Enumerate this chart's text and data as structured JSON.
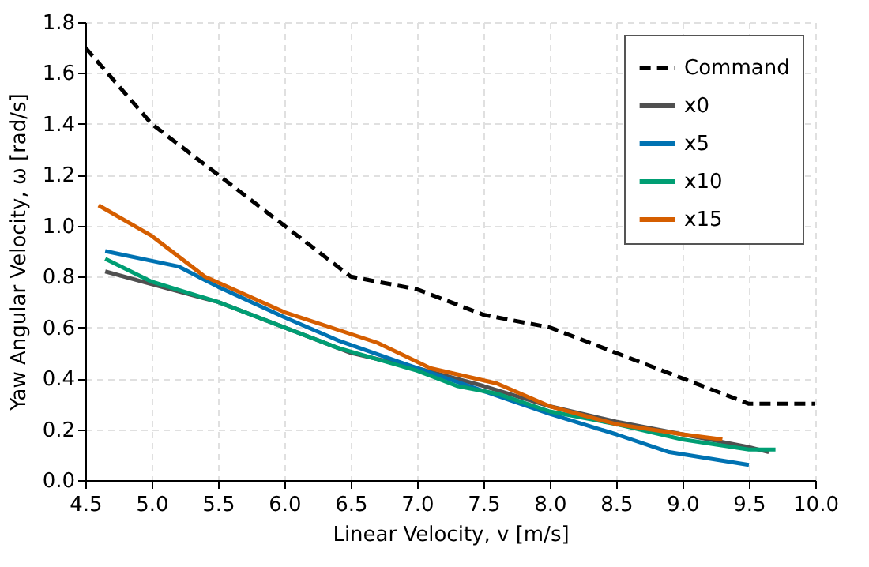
{
  "chart_data": {
    "type": "line",
    "xlabel": "Linear Velocity, v [m/s]",
    "ylabel": "Yaw Angular Velocity, ω [rad/s]",
    "xlim": [
      4.5,
      10.0
    ],
    "xticks": [
      {
        "value": 4.5,
        "label": "4.5"
      },
      {
        "value": 5,
        "label": "5.0"
      },
      {
        "value": 5.5,
        "label": "5.5"
      },
      {
        "value": 6,
        "label": "6.0"
      },
      {
        "value": 6.5,
        "label": "6.5"
      },
      {
        "value": 7,
        "label": "7.0"
      },
      {
        "value": 7.5,
        "label": "7.5"
      },
      {
        "value": 8,
        "label": "8.0"
      },
      {
        "value": 8.5,
        "label": "8.5"
      },
      {
        "value": 9,
        "label": "9.0"
      },
      {
        "value": 9.5,
        "label": "9.5"
      },
      {
        "value": 10,
        "label": "10.0"
      }
    ],
    "ylim": [
      0,
      1.8
    ],
    "yticks": [
      {
        "value": 0,
        "label": "0.0"
      },
      {
        "value": 0.2,
        "label": "0.2"
      },
      {
        "value": 0.4,
        "label": "0.4"
      },
      {
        "value": 0.6,
        "label": "0.6"
      },
      {
        "value": 0.8,
        "label": "0.8"
      },
      {
        "value": 1,
        "label": "1.0"
      },
      {
        "value": 1.2,
        "label": "1.2"
      },
      {
        "value": 1.4,
        "label": "1.4"
      },
      {
        "value": 1.6,
        "label": "1.6"
      },
      {
        "value": 1.8,
        "label": "1.8"
      }
    ],
    "grid": true,
    "legend": "top right",
    "marker": "none",
    "series": [
      {
        "name": "Command",
        "color": "#000000",
        "line_style": "dashed",
        "x": [
          4.5,
          5.0,
          5.5,
          6.0,
          6.5,
          7.0,
          7.5,
          8.0,
          8.5,
          9.0,
          9.5,
          10.0
        ],
        "values": [
          1.7,
          1.4,
          1.2,
          1.0,
          0.8,
          0.75,
          0.65,
          0.6,
          0.5,
          0.4,
          0.3,
          0.3
        ]
      },
      {
        "name": "x0",
        "color": "#505050",
        "line_style": "solid",
        "x": [
          4.65,
          5.0,
          5.5,
          6.0,
          6.5,
          7.0,
          7.5,
          8.0,
          8.5,
          9.0,
          9.5,
          9.65
        ],
        "values": [
          0.82,
          0.77,
          0.7,
          0.6,
          0.5,
          0.44,
          0.37,
          0.29,
          0.23,
          0.18,
          0.13,
          0.11
        ]
      },
      {
        "name": "x5",
        "color": "#0072b2",
        "line_style": "solid",
        "x": [
          4.65,
          5.2,
          5.5,
          6.0,
          6.4,
          7.0,
          7.5,
          8.0,
          8.5,
          8.9,
          9.5
        ],
        "values": [
          0.9,
          0.84,
          0.76,
          0.64,
          0.55,
          0.44,
          0.35,
          0.26,
          0.18,
          0.11,
          0.06
        ]
      },
      {
        "name": "x10",
        "color": "#009e73",
        "line_style": "solid",
        "x": [
          4.65,
          5.0,
          5.5,
          6.0,
          6.4,
          7.0,
          7.3,
          7.6,
          8.0,
          8.5,
          9.0,
          9.5,
          9.7
        ],
        "values": [
          0.87,
          0.78,
          0.7,
          0.6,
          0.52,
          0.43,
          0.37,
          0.34,
          0.27,
          0.22,
          0.16,
          0.12,
          0.12
        ]
      },
      {
        "name": "x15",
        "color": "#d55e00",
        "line_style": "solid",
        "x": [
          4.6,
          5.0,
          5.4,
          6.0,
          6.7,
          7.1,
          7.6,
          8.0,
          8.5,
          9.0,
          9.3
        ],
        "values": [
          1.08,
          0.96,
          0.8,
          0.66,
          0.54,
          0.44,
          0.38,
          0.29,
          0.22,
          0.18,
          0.16
        ]
      }
    ]
  }
}
